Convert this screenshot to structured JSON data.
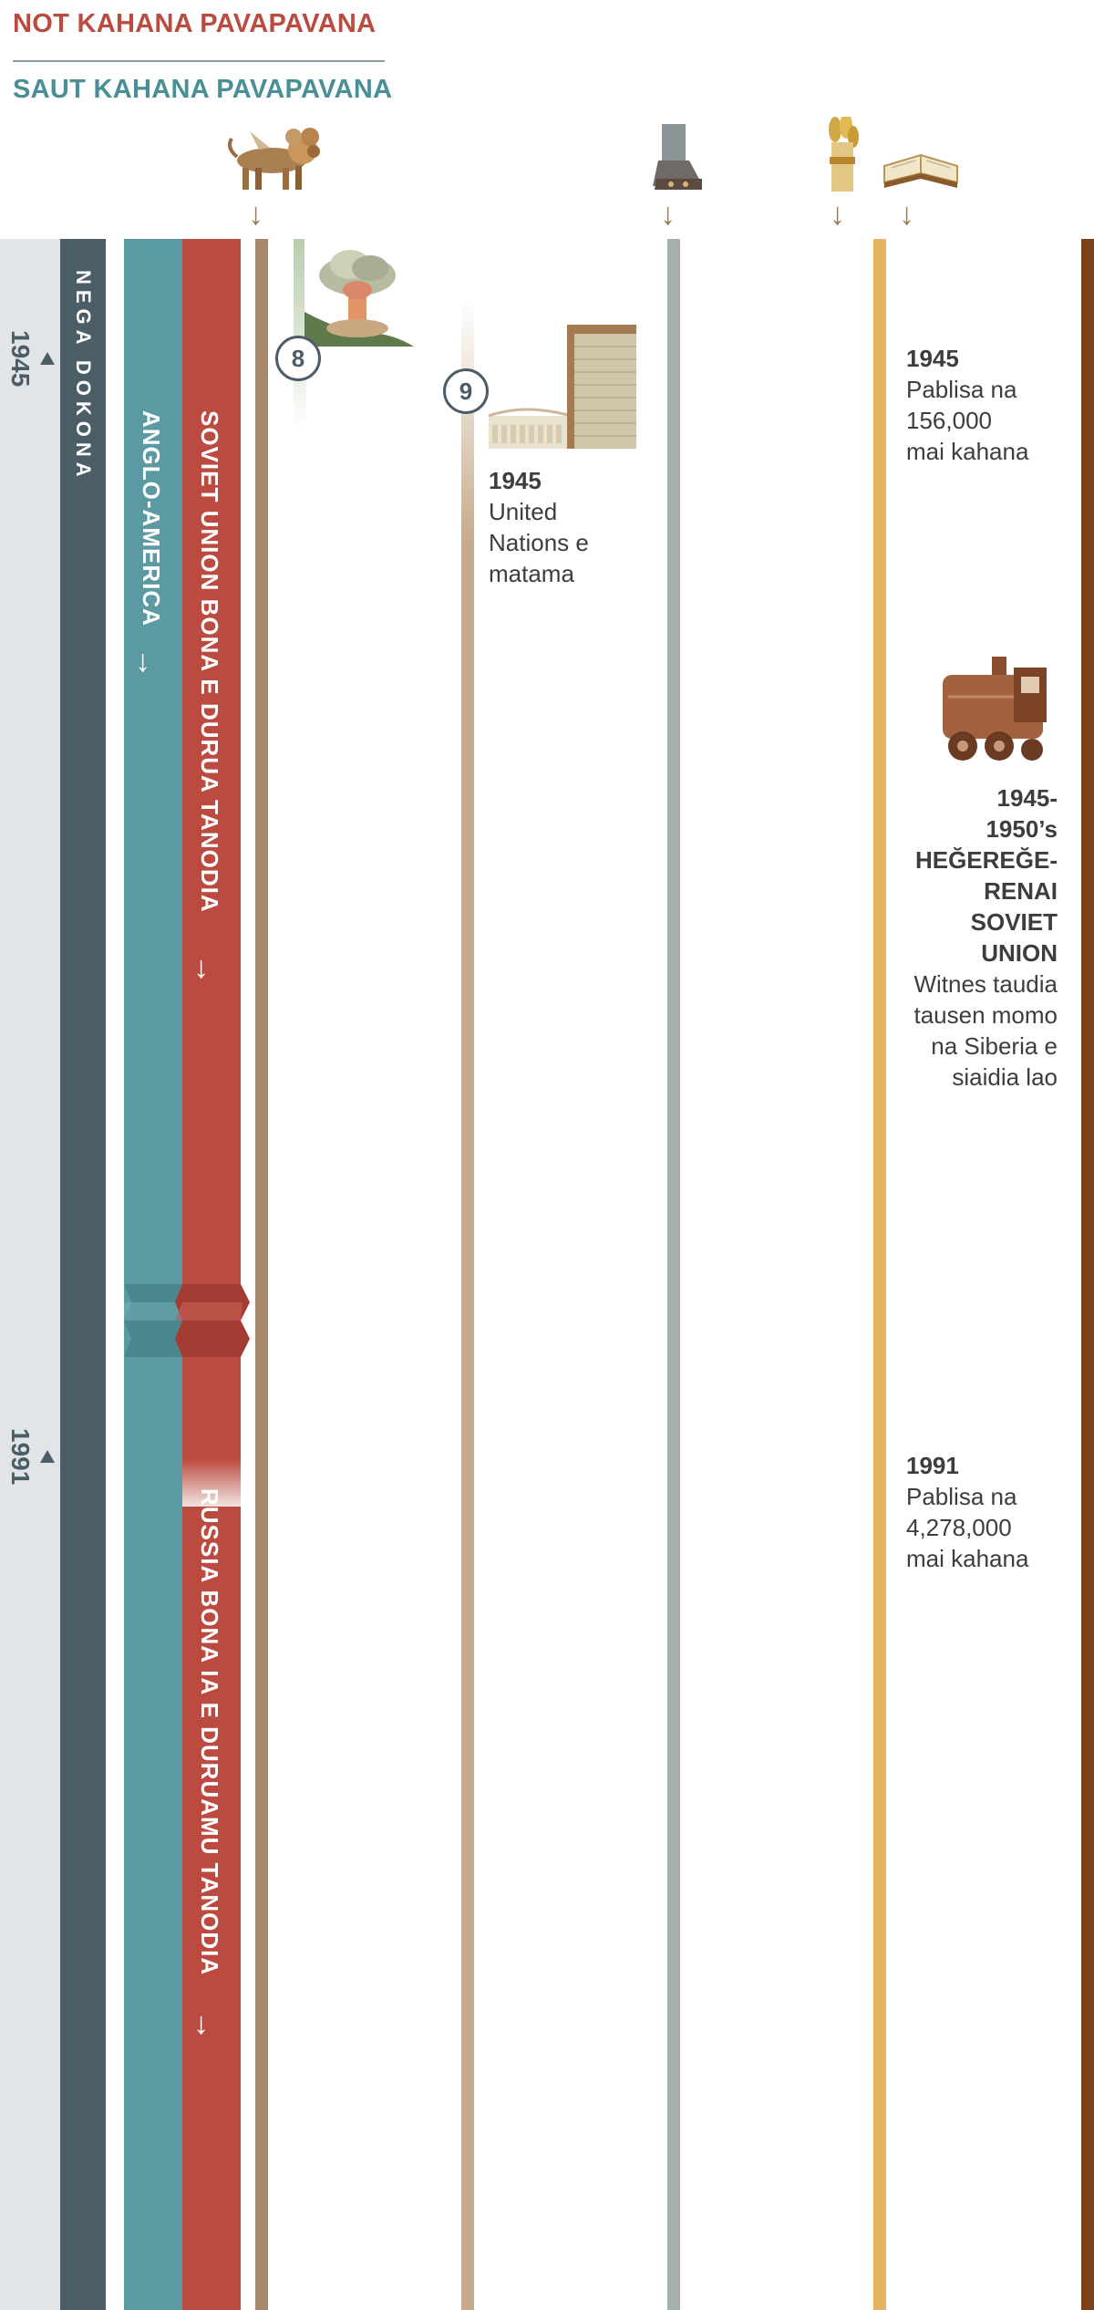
{
  "header": {
    "north_king": "NOT KAHANA PAVAPAVANA",
    "south_king": "SAUT KAHANA PAVAPAVANA"
  },
  "icons": {
    "lion": "lion-beast-icon",
    "feet": "iron-clay-feet-icon",
    "wheat": "wheat-sheaf-icon",
    "bible": "open-bible-icon"
  },
  "timeline": {
    "year_1945": "1945",
    "year_1991": "1991"
  },
  "bands": {
    "nega_dokona": "NEGA DOKONA",
    "anglo_america": "ANGLO-AMERICA",
    "soviet_union": "SOVIET UNION BONA E DURUA TANODIA",
    "russia": "RUSSIA BONA IA E DURUAMU TANODIA"
  },
  "markers": {
    "m8": "8",
    "m9": "9"
  },
  "events": {
    "un": {
      "year": "1945",
      "line1": "United",
      "line2": "Nations e",
      "line3": "matama"
    },
    "pub_1945": {
      "year": "1945",
      "line1": "Pablisa na",
      "line2": "156,000",
      "line3": "mai kahana"
    },
    "soviet_persecution": {
      "year1": "1945-",
      "year2": "1950’s",
      "title1": "HEĞEREĞE-",
      "title2": "RENAI",
      "title3": "SOVIET",
      "title4": "UNION",
      "line1": "Witnes taudia",
      "line2": "tausen momo",
      "line3": "na Siberia e",
      "line4": "siaidia lao"
    },
    "pub_1991": {
      "year": "1991",
      "line1": "Pablisa na",
      "line2": "4,278,000",
      "line3": "mai kahana"
    }
  },
  "colors": {
    "left_panel": "#e2e5e7",
    "nega_band": "#4b5d66",
    "anglo_band": "#5b9aa2",
    "soviet_band": "#bb4b40",
    "lion_line": "#a8876a",
    "un_line": "#c6ab8c",
    "feet_line": "#a4afae",
    "wheat_line": "#e6b45e",
    "right_line": "#7b4217"
  }
}
